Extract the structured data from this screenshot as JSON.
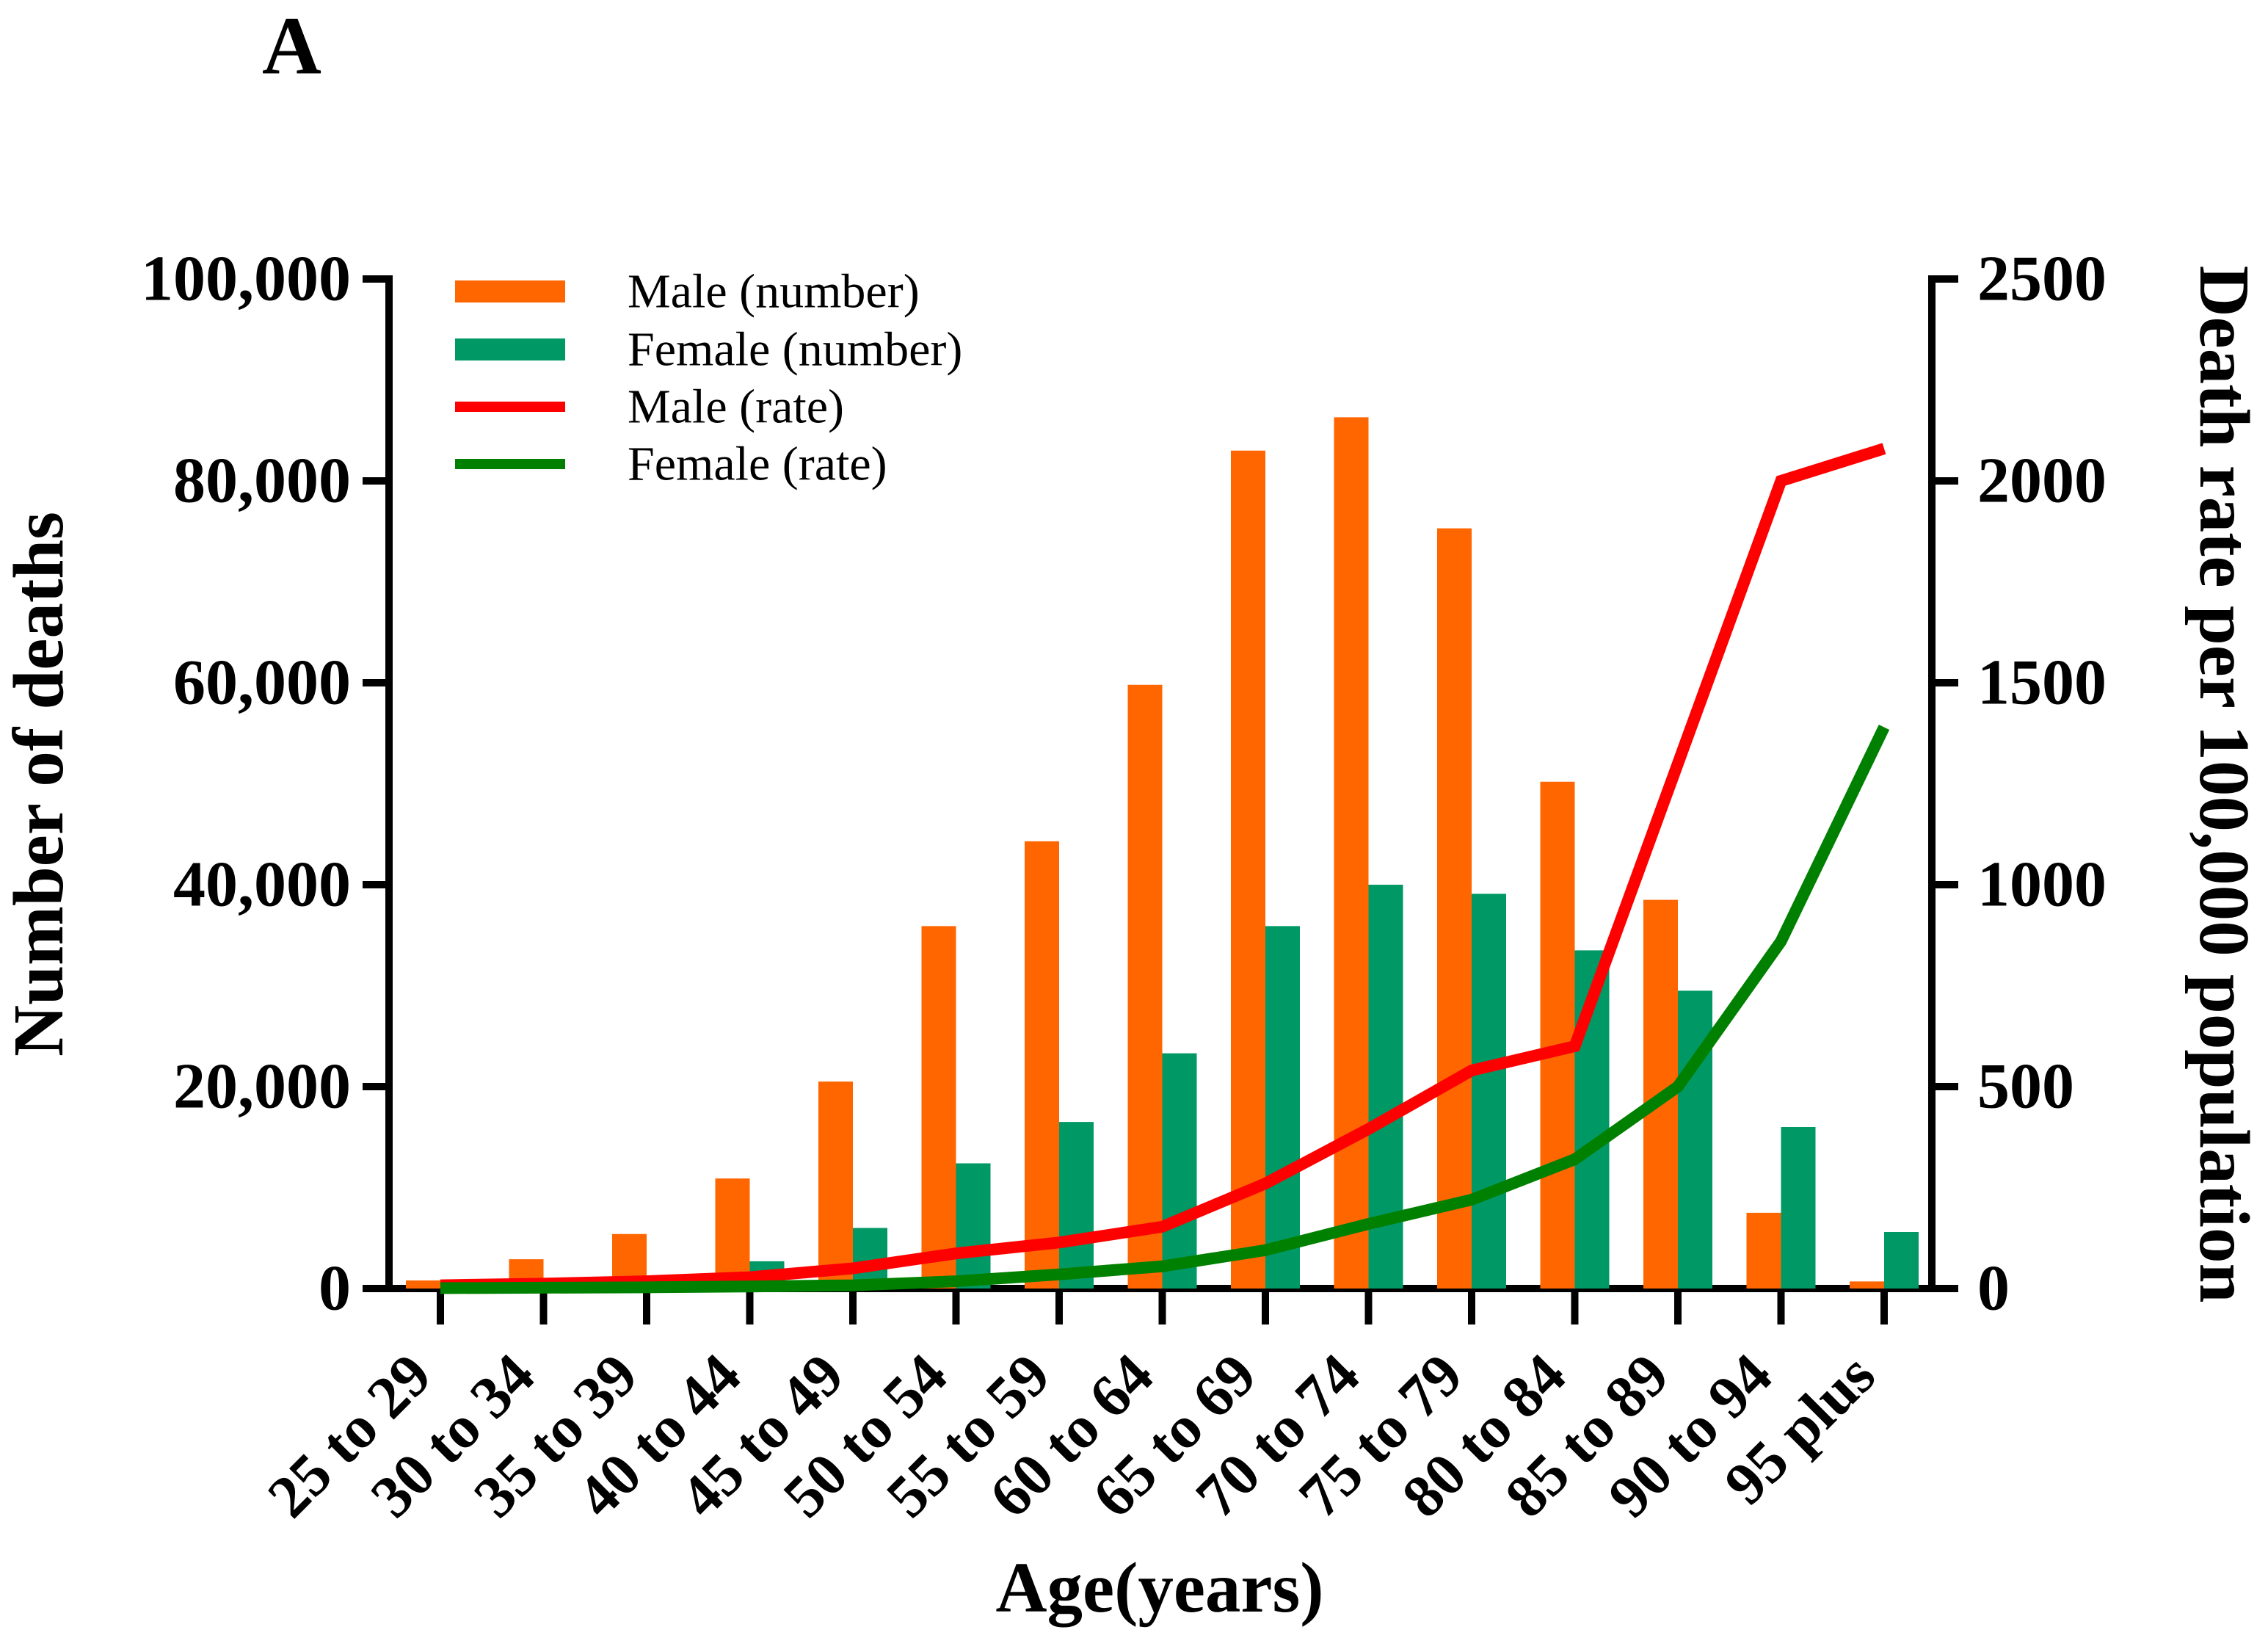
{
  "chart_data": {
    "type": "bar+line",
    "panel_label": "A",
    "xlabel": "Age(years)",
    "ylabel_left": "Number of deaths",
    "ylabel_right": "Death rate per 100,000 population",
    "ylim_left": [
      0,
      100000
    ],
    "ylim_right": [
      0,
      2500
    ],
    "grid": false,
    "legend_position": "top-left-inside",
    "background_color": "#ffffff",
    "axis_color": "#000000",
    "left_tick_values": [
      0,
      20000,
      40000,
      60000,
      80000,
      100000
    ],
    "left_tick_labels": [
      "0",
      "20,000",
      "40,000",
      "60,000",
      "80,000",
      "100,000"
    ],
    "right_tick_values": [
      0,
      500,
      1000,
      1500,
      2000,
      2500
    ],
    "right_tick_labels": [
      "0",
      "500",
      "1000",
      "1500",
      "2000",
      "2500"
    ],
    "categories": [
      "25 to 29",
      "30 to 34",
      "35 to 39",
      "40 to 44",
      "45 to 49",
      "50 to 54",
      "55 to 59",
      "60 to 64",
      "65 to 69",
      "70 to 74",
      "75 to 79",
      "80 to 84",
      "85 to 89",
      "90 to 94",
      "95 plus"
    ],
    "series": [
      {
        "name": "Male (number)",
        "type": "bar",
        "axis": "left",
        "color": "#FF6600",
        "values": [
          800,
          2900,
          5400,
          10900,
          20500,
          35900,
          44300,
          59800,
          83000,
          86300,
          75300,
          50200,
          38500,
          7500,
          700
        ]
      },
      {
        "name": "Female (number)",
        "type": "bar",
        "axis": "left",
        "color": "#009966",
        "values": [
          150,
          400,
          800,
          2700,
          6000,
          12400,
          16500,
          23300,
          35900,
          40000,
          39100,
          33500,
          29500,
          16000,
          5600
        ]
      },
      {
        "name": "Male (rate)",
        "type": "line",
        "axis": "right",
        "color": "#FF0000",
        "values": [
          8,
          12,
          18,
          28,
          50,
          87,
          114,
          153,
          260,
          395,
          540,
          600,
          1300,
          2000,
          2080
        ]
      },
      {
        "name": "Female (rate)",
        "type": "line",
        "axis": "right",
        "color": "#008000",
        "values": [
          1,
          2,
          3,
          5,
          8,
          18,
          35,
          55,
          95,
          160,
          220,
          320,
          500,
          860,
          1390
        ]
      }
    ]
  }
}
